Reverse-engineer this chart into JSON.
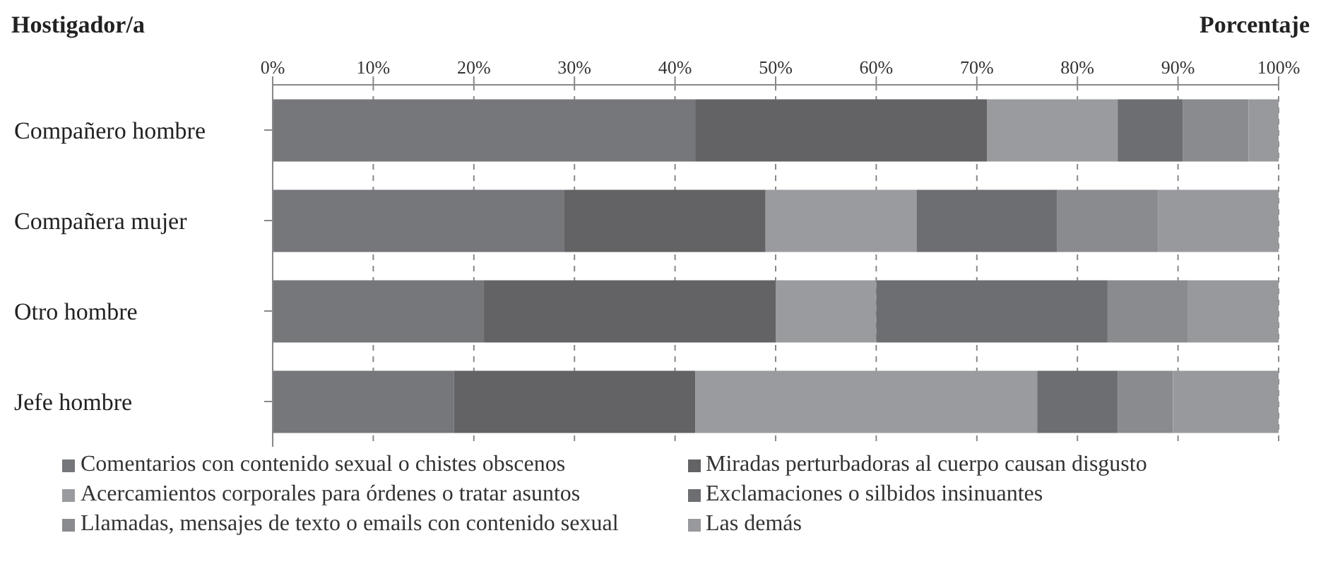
{
  "chart_data": {
    "type": "bar",
    "orientation": "horizontal",
    "stacked": true,
    "xlabel": "Porcentaje",
    "ylabel": "Hostigador/a",
    "categories": [
      "Compañero hombre",
      "Compañera mujer",
      "Otro hombre",
      "Jefe hombre"
    ],
    "series": [
      {
        "name": "Comentarios con contenido sexual o chistes obscenos",
        "color": "#76777b",
        "values": [
          42,
          29,
          21,
          18
        ]
      },
      {
        "name": "Miradas perturbadoras al cuerpo causan disgusto",
        "color": "#636366",
        "values": [
          29,
          20,
          29,
          24
        ]
      },
      {
        "name": "Acercamientos corporales para órdenes o tratar asuntos",
        "color": "#9a9b9e",
        "values": [
          13,
          15,
          10,
          34
        ]
      },
      {
        "name": "Exclamaciones o silbidos insinuantes",
        "color": "#6d6e71",
        "values": [
          6.5,
          14,
          23,
          8
        ]
      },
      {
        "name": "Llamadas, mensajes de texto o emails con contenido sexual",
        "color": "#8a8b8e",
        "values": [
          6.5,
          10,
          8,
          5.5
        ]
      },
      {
        "name": "Las demás",
        "color": "#98999c",
        "values": [
          3,
          12,
          9,
          10.5
        ]
      }
    ],
    "xlim": [
      0,
      100
    ],
    "xticks": [
      {
        "value": 0,
        "label": "0%"
      },
      {
        "value": 10,
        "label": "10%"
      },
      {
        "value": 20,
        "label": "20%"
      },
      {
        "value": 30,
        "label": "30%"
      },
      {
        "value": 40,
        "label": "40%"
      },
      {
        "value": 50,
        "label": "50%"
      },
      {
        "value": 60,
        "label": "60%"
      },
      {
        "value": 70,
        "label": "70%"
      },
      {
        "value": 80,
        "label": "80%"
      },
      {
        "value": 90,
        "label": "90%"
      },
      {
        "value": 100,
        "label": "100%"
      }
    ],
    "grid": "x",
    "legend": "bottom"
  }
}
